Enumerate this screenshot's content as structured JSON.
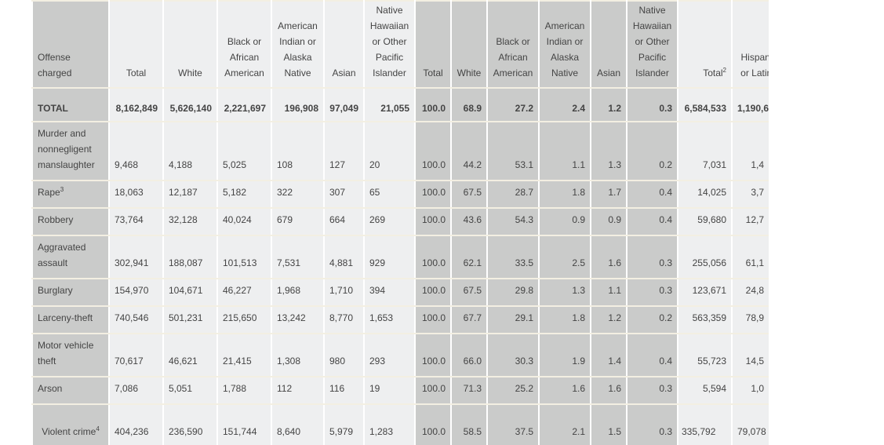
{
  "headers": [
    "Offense charged",
    "Total",
    "White",
    "Black or African American",
    "American Indian or Alaska Native",
    "Asian",
    "Native Hawaiian or Other Pacific Islander",
    "Total",
    "White",
    "Black or African American",
    "American Indian or Alaska Native",
    "Asian",
    "Native Hawaiian or Other Pacific Islander",
    "Total",
    "Hispanic or Latino"
  ],
  "total_sup": "2",
  "rows": [
    {
      "label": "TOTAL",
      "sup": "",
      "cells": [
        "8,162,849",
        "5,626,140",
        "2,221,697",
        "196,908",
        "97,049",
        "21,055",
        "100.0",
        "68.9",
        "27.2",
        "2.4",
        "1.2",
        "0.3",
        "6,584,533",
        "1,190,6"
      ]
    },
    {
      "label": "Murder and nonnegligent manslaughter",
      "sup": "",
      "cells": [
        "9,468",
        "4,188",
        "5,025",
        "108",
        "127",
        "20",
        "100.0",
        "44.2",
        "53.1",
        "1.1",
        "1.3",
        "0.2",
        "7,031",
        "1,4"
      ]
    },
    {
      "label": "Rape",
      "sup": "3",
      "cells": [
        "18,063",
        "12,187",
        "5,182",
        "322",
        "307",
        "65",
        "100.0",
        "67.5",
        "28.7",
        "1.8",
        "1.7",
        "0.4",
        "14,025",
        "3,7"
      ]
    },
    {
      "label": "Robbery",
      "sup": "",
      "cells": [
        "73,764",
        "32,128",
        "40,024",
        "679",
        "664",
        "269",
        "100.0",
        "43.6",
        "54.3",
        "0.9",
        "0.9",
        "0.4",
        "59,680",
        "12,7"
      ]
    },
    {
      "label": "Aggravated assault",
      "sup": "",
      "cells": [
        "302,941",
        "188,087",
        "101,513",
        "7,531",
        "4,881",
        "929",
        "100.0",
        "62.1",
        "33.5",
        "2.5",
        "1.6",
        "0.3",
        "255,056",
        "61,1"
      ]
    },
    {
      "label": "Burglary",
      "sup": "",
      "cells": [
        "154,970",
        "104,671",
        "46,227",
        "1,968",
        "1,710",
        "394",
        "100.0",
        "67.5",
        "29.8",
        "1.3",
        "1.1",
        "0.3",
        "123,671",
        "24,8"
      ]
    },
    {
      "label": "Larceny-theft",
      "sup": "",
      "cells": [
        "740,546",
        "501,231",
        "215,650",
        "13,242",
        "8,770",
        "1,653",
        "100.0",
        "67.7",
        "29.1",
        "1.8",
        "1.2",
        "0.2",
        "563,359",
        "78,9"
      ]
    },
    {
      "label": "Motor vehicle theft",
      "sup": "",
      "cells": [
        "70,617",
        "46,621",
        "21,415",
        "1,308",
        "980",
        "293",
        "100.0",
        "66.0",
        "30.3",
        "1.9",
        "1.4",
        "0.4",
        "55,723",
        "14,5"
      ]
    },
    {
      "label": "Arson",
      "sup": "",
      "cells": [
        "7,086",
        "5,051",
        "1,788",
        "112",
        "116",
        "19",
        "100.0",
        "71.3",
        "25.2",
        "1.6",
        "1.6",
        "0.3",
        "5,594",
        "1,0"
      ]
    },
    {
      "label": "Violent crime",
      "sup": "4",
      "cells": [
        "404,236",
        "236,590",
        "151,744",
        "8,640",
        "5,979",
        "1,283",
        "100.0",
        "58.5",
        "37.5",
        "2.1",
        "1.5",
        "0.3",
        "335,792",
        "79,078"
      ]
    }
  ],
  "row_heights": [
    35,
    75,
    35,
    35,
    55,
    35,
    35,
    55,
    35,
    55
  ]
}
